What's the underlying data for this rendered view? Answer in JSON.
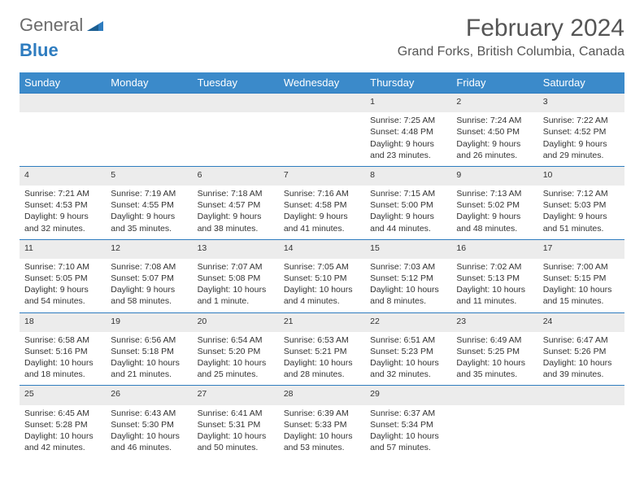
{
  "logo": {
    "text1": "General",
    "text2": "Blue"
  },
  "title": "February 2024",
  "location": "Grand Forks, British Columbia, Canada",
  "colors": {
    "header_bg": "#3b8aca",
    "daynum_bg": "#ececec",
    "rule": "#2e7cbf"
  },
  "days_of_week": [
    "Sunday",
    "Monday",
    "Tuesday",
    "Wednesday",
    "Thursday",
    "Friday",
    "Saturday"
  ],
  "weeks": [
    [
      null,
      null,
      null,
      null,
      {
        "n": "1",
        "sr": "7:25 AM",
        "ss": "4:48 PM",
        "dl": "9 hours and 23 minutes."
      },
      {
        "n": "2",
        "sr": "7:24 AM",
        "ss": "4:50 PM",
        "dl": "9 hours and 26 minutes."
      },
      {
        "n": "3",
        "sr": "7:22 AM",
        "ss": "4:52 PM",
        "dl": "9 hours and 29 minutes."
      }
    ],
    [
      {
        "n": "4",
        "sr": "7:21 AM",
        "ss": "4:53 PM",
        "dl": "9 hours and 32 minutes."
      },
      {
        "n": "5",
        "sr": "7:19 AM",
        "ss": "4:55 PM",
        "dl": "9 hours and 35 minutes."
      },
      {
        "n": "6",
        "sr": "7:18 AM",
        "ss": "4:57 PM",
        "dl": "9 hours and 38 minutes."
      },
      {
        "n": "7",
        "sr": "7:16 AM",
        "ss": "4:58 PM",
        "dl": "9 hours and 41 minutes."
      },
      {
        "n": "8",
        "sr": "7:15 AM",
        "ss": "5:00 PM",
        "dl": "9 hours and 44 minutes."
      },
      {
        "n": "9",
        "sr": "7:13 AM",
        "ss": "5:02 PM",
        "dl": "9 hours and 48 minutes."
      },
      {
        "n": "10",
        "sr": "7:12 AM",
        "ss": "5:03 PM",
        "dl": "9 hours and 51 minutes."
      }
    ],
    [
      {
        "n": "11",
        "sr": "7:10 AM",
        "ss": "5:05 PM",
        "dl": "9 hours and 54 minutes."
      },
      {
        "n": "12",
        "sr": "7:08 AM",
        "ss": "5:07 PM",
        "dl": "9 hours and 58 minutes."
      },
      {
        "n": "13",
        "sr": "7:07 AM",
        "ss": "5:08 PM",
        "dl": "10 hours and 1 minute."
      },
      {
        "n": "14",
        "sr": "7:05 AM",
        "ss": "5:10 PM",
        "dl": "10 hours and 4 minutes."
      },
      {
        "n": "15",
        "sr": "7:03 AM",
        "ss": "5:12 PM",
        "dl": "10 hours and 8 minutes."
      },
      {
        "n": "16",
        "sr": "7:02 AM",
        "ss": "5:13 PM",
        "dl": "10 hours and 11 minutes."
      },
      {
        "n": "17",
        "sr": "7:00 AM",
        "ss": "5:15 PM",
        "dl": "10 hours and 15 minutes."
      }
    ],
    [
      {
        "n": "18",
        "sr": "6:58 AM",
        "ss": "5:16 PM",
        "dl": "10 hours and 18 minutes."
      },
      {
        "n": "19",
        "sr": "6:56 AM",
        "ss": "5:18 PM",
        "dl": "10 hours and 21 minutes."
      },
      {
        "n": "20",
        "sr": "6:54 AM",
        "ss": "5:20 PM",
        "dl": "10 hours and 25 minutes."
      },
      {
        "n": "21",
        "sr": "6:53 AM",
        "ss": "5:21 PM",
        "dl": "10 hours and 28 minutes."
      },
      {
        "n": "22",
        "sr": "6:51 AM",
        "ss": "5:23 PM",
        "dl": "10 hours and 32 minutes."
      },
      {
        "n": "23",
        "sr": "6:49 AM",
        "ss": "5:25 PM",
        "dl": "10 hours and 35 minutes."
      },
      {
        "n": "24",
        "sr": "6:47 AM",
        "ss": "5:26 PM",
        "dl": "10 hours and 39 minutes."
      }
    ],
    [
      {
        "n": "25",
        "sr": "6:45 AM",
        "ss": "5:28 PM",
        "dl": "10 hours and 42 minutes."
      },
      {
        "n": "26",
        "sr": "6:43 AM",
        "ss": "5:30 PM",
        "dl": "10 hours and 46 minutes."
      },
      {
        "n": "27",
        "sr": "6:41 AM",
        "ss": "5:31 PM",
        "dl": "10 hours and 50 minutes."
      },
      {
        "n": "28",
        "sr": "6:39 AM",
        "ss": "5:33 PM",
        "dl": "10 hours and 53 minutes."
      },
      {
        "n": "29",
        "sr": "6:37 AM",
        "ss": "5:34 PM",
        "dl": "10 hours and 57 minutes."
      },
      null,
      null
    ]
  ],
  "labels": {
    "sunrise": "Sunrise:",
    "sunset": "Sunset:",
    "daylight": "Daylight:"
  }
}
